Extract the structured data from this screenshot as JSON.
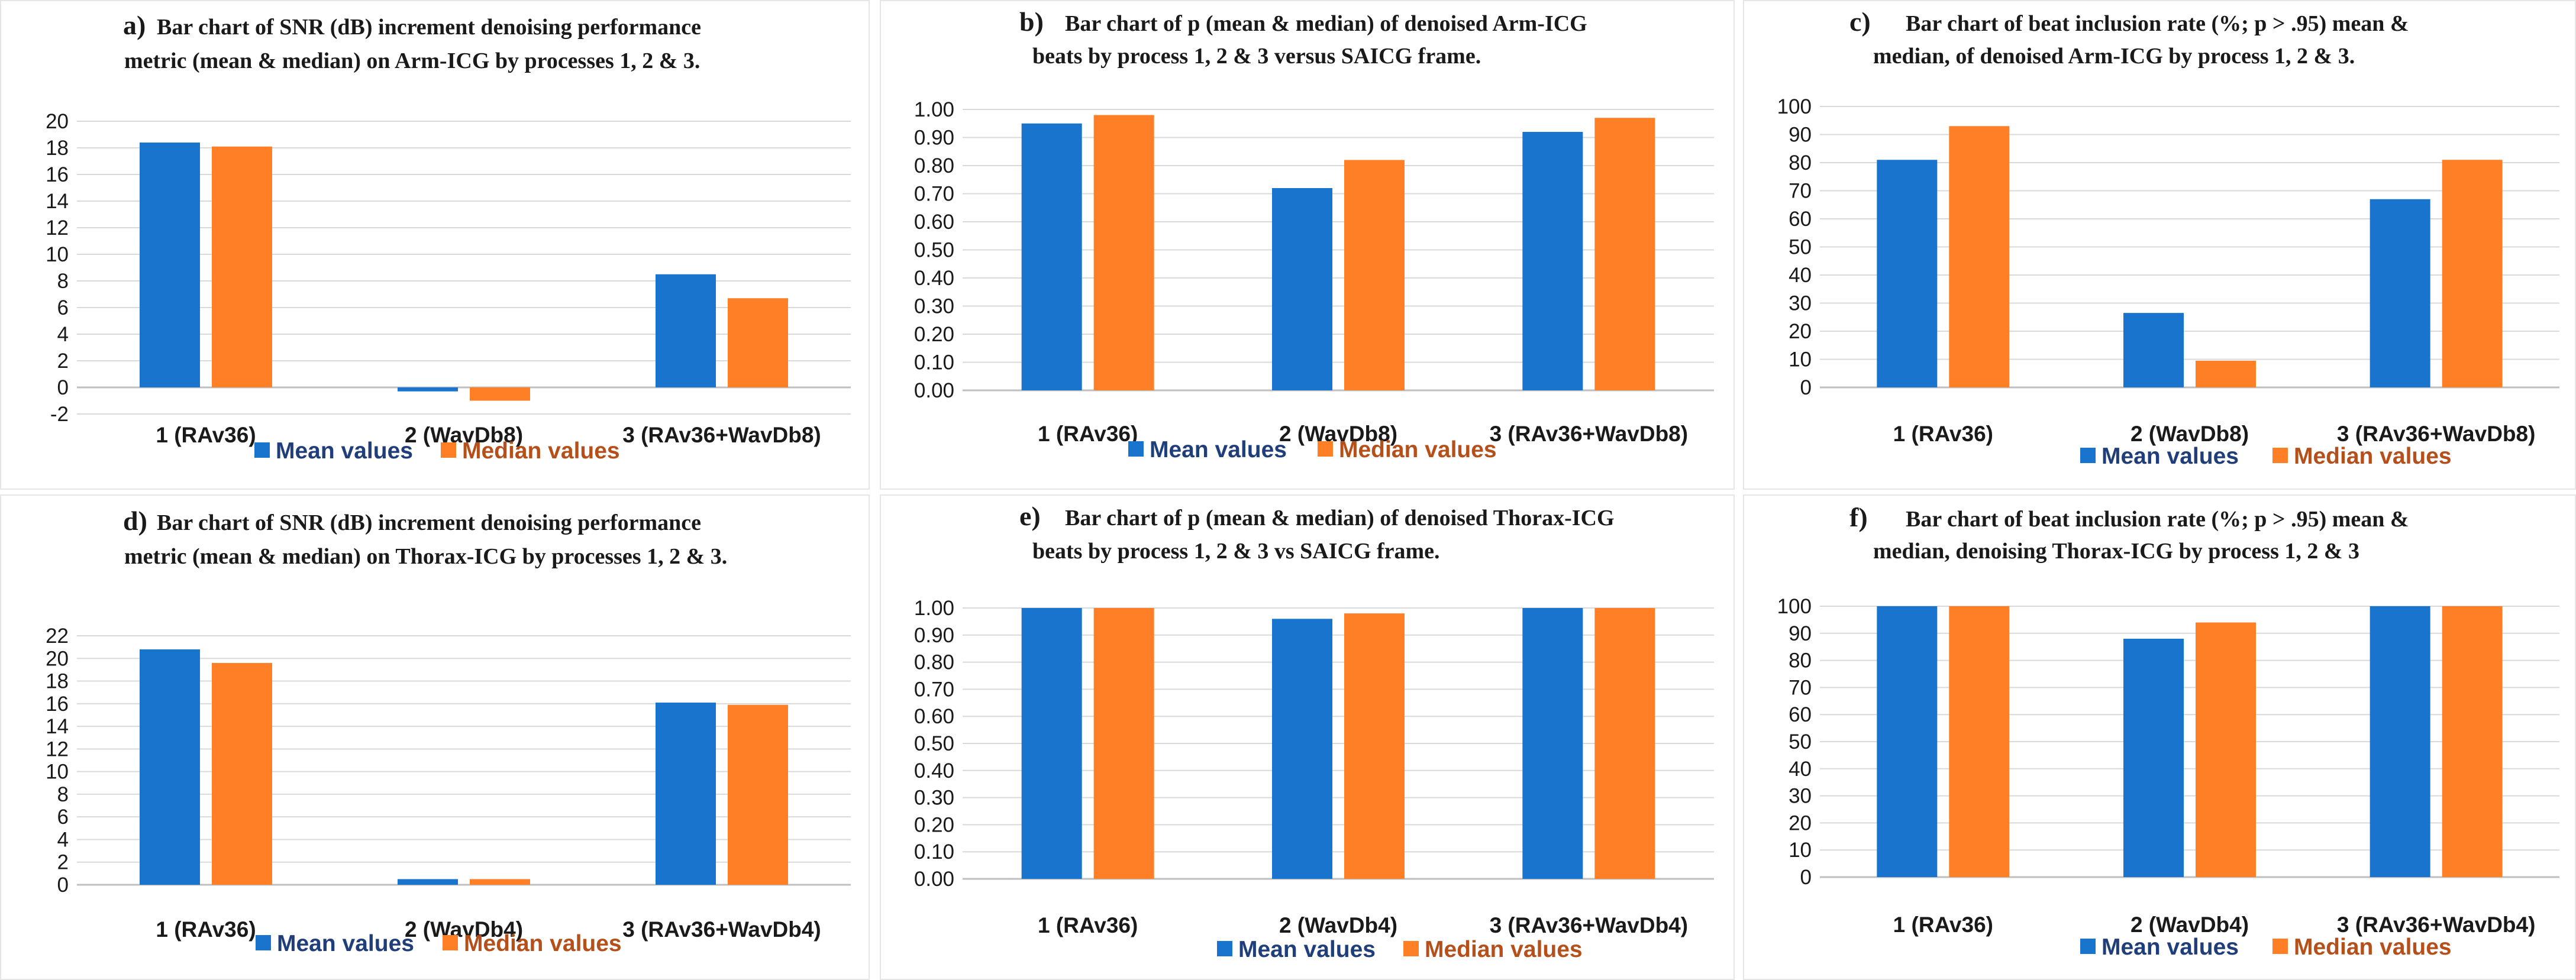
{
  "colors": {
    "mean": "#1874CD",
    "median": "#FF7F27",
    "mean_text": "#1F3E7A",
    "median_text": "#B5501B",
    "grid": "#D9D9D9",
    "axis": "#BFBFBF"
  },
  "legend": {
    "mean": "Mean values",
    "median": "Median values"
  },
  "chart_data": [
    {
      "type": "bar",
      "panel": "a",
      "title_letter": "a)",
      "title_lines": [
        "Bar chart of  SNR (dB) increment denoising performance",
        "metric (mean & median) on Arm-ICG by processes 1, 2 & 3."
      ],
      "categories": [
        "1 (RAv36)",
        "2 (WavDb8)",
        "3 (RAv36+WavDb8)"
      ],
      "series": [
        {
          "name": "Mean values",
          "values": [
            18.4,
            -0.3,
            8.5
          ]
        },
        {
          "name": "Median values",
          "values": [
            18.1,
            -1.0,
            6.7
          ]
        }
      ],
      "ylim": [
        -2,
        20
      ],
      "yticks": [
        "-2",
        "0",
        "2",
        "4",
        "6",
        "8",
        "10",
        "12",
        "14",
        "16",
        "18",
        "20"
      ]
    },
    {
      "type": "bar",
      "panel": "b",
      "title_letter": "b)",
      "title_lines": [
        "Bar chart of  p (mean & median) of denoised Arm-ICG",
        "beats by process 1, 2 & 3 versus SAICG frame."
      ],
      "categories": [
        "1 (RAv36)",
        "2 (WavDb8)",
        "3 (RAv36+WavDb8)"
      ],
      "series": [
        {
          "name": "Mean values",
          "values": [
            0.95,
            0.72,
            0.92
          ]
        },
        {
          "name": "Median values",
          "values": [
            0.98,
            0.82,
            0.97
          ]
        }
      ],
      "ylim": [
        0,
        1
      ],
      "yticks": [
        "0.00",
        "0.10",
        "0.20",
        "0.30",
        "0.40",
        "0.50",
        "0.60",
        "0.70",
        "0.80",
        "0.90",
        "1.00"
      ]
    },
    {
      "type": "bar",
      "panel": "c",
      "title_letter": "c)",
      "title_lines": [
        "Bar chart of beat inclusion rate (%; p > .95) mean &",
        "median, of denoised Arm-ICG by process 1, 2 & 3."
      ],
      "categories": [
        "1 (RAv36)",
        "2 (WavDb8)",
        "3 (RAv36+WavDb8)"
      ],
      "series": [
        {
          "name": "Mean values",
          "values": [
            81,
            26.5,
            67
          ]
        },
        {
          "name": "Median values",
          "values": [
            93,
            9.5,
            81
          ]
        }
      ],
      "ylim": [
        0,
        100
      ],
      "yticks": [
        "0",
        "10",
        "20",
        "30",
        "40",
        "50",
        "60",
        "70",
        "80",
        "90",
        "100"
      ]
    },
    {
      "type": "bar",
      "panel": "d",
      "title_letter": "d)",
      "title_lines": [
        "Bar chart of  SNR (dB) increment denoising performance",
        "metric (mean & median) on Thorax-ICG by processes 1, 2 & 3."
      ],
      "categories": [
        "1 (RAv36)",
        "2 (WavDb4)",
        "3 (RAv36+WavDb4)"
      ],
      "series": [
        {
          "name": "Mean values",
          "values": [
            20.8,
            0.5,
            16.1
          ]
        },
        {
          "name": "Median values",
          "values": [
            19.6,
            0.5,
            15.9
          ]
        }
      ],
      "ylim": [
        0,
        22
      ],
      "yticks": [
        "0",
        "2",
        "4",
        "6",
        "8",
        "10",
        "12",
        "14",
        "16",
        "18",
        "20",
        "22"
      ]
    },
    {
      "type": "bar",
      "panel": "e",
      "title_letter": "e)",
      "title_lines": [
        "Bar chart of  p (mean & median) of denoised Thorax-ICG",
        "beats by process 1, 2 & 3 vs SAICG frame."
      ],
      "categories": [
        "1 (RAv36)",
        "2 (WavDb4)",
        "3 (RAv36+WavDb4)"
      ],
      "series": [
        {
          "name": "Mean values",
          "values": [
            1.0,
            0.96,
            1.0
          ]
        },
        {
          "name": "Median values",
          "values": [
            1.0,
            0.98,
            1.0
          ]
        }
      ],
      "ylim": [
        0,
        1
      ],
      "yticks": [
        "0.00",
        "0.10",
        "0.20",
        "0.30",
        "0.40",
        "0.50",
        "0.60",
        "0.70",
        "0.80",
        "0.90",
        "1.00"
      ]
    },
    {
      "type": "bar",
      "panel": "f",
      "title_letter": "f)",
      "title_lines": [
        "Bar chart of beat inclusion rate (%; p > .95) mean &",
        "median, denoising Thorax-ICG by process 1, 2 & 3"
      ],
      "categories": [
        "1 (RAv36)",
        "2 (WavDb4)",
        "3 (RAv36+WavDb4)"
      ],
      "series": [
        {
          "name": "Mean values",
          "values": [
            100,
            88,
            100
          ]
        },
        {
          "name": "Median values",
          "values": [
            100,
            94,
            100
          ]
        }
      ],
      "ylim": [
        0,
        100
      ],
      "yticks": [
        "0",
        "10",
        "20",
        "30",
        "40",
        "50",
        "60",
        "70",
        "80",
        "90",
        "100"
      ]
    }
  ]
}
